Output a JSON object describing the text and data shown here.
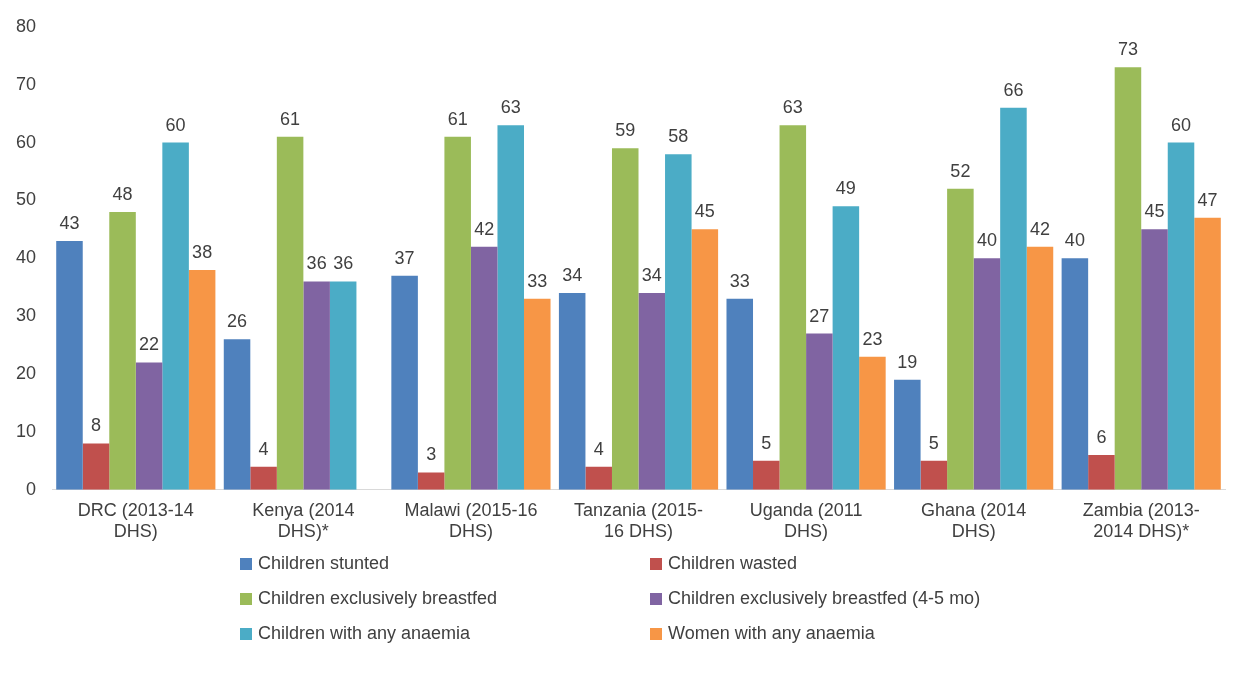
{
  "chart_data": {
    "type": "bar",
    "categories": [
      "DRC (2013-14 DHS)",
      "Kenya (2014 DHS)*",
      "Malawi (2015-16 DHS)",
      "Tanzania (2015-16 DHS)",
      "Uganda (2011 DHS)",
      "Ghana (2014 DHS)",
      "Zambia (2013-2014 DHS)*"
    ],
    "series": [
      {
        "name": "Children stunted",
        "color": "#4f81bd",
        "values": [
          43,
          26,
          37,
          34,
          33,
          19,
          40
        ]
      },
      {
        "name": "Children wasted",
        "color": "#c0504d",
        "values": [
          8,
          4,
          3,
          4,
          5,
          5,
          6
        ]
      },
      {
        "name": "Children exclusively breastfed",
        "color": "#9bbb59",
        "values": [
          48,
          61,
          61,
          59,
          63,
          52,
          73
        ]
      },
      {
        "name": "Children exclusively breastfed (4-5 mo)",
        "color": "#8064a2",
        "values": [
          22,
          36,
          42,
          34,
          27,
          40,
          45
        ]
      },
      {
        "name": "Children with any anaemia",
        "color": "#4bacc6",
        "values": [
          60,
          36,
          63,
          58,
          49,
          66,
          60
        ]
      },
      {
        "name": "Women with any anaemia",
        "color": "#f79646",
        "values": [
          38,
          null,
          33,
          45,
          23,
          42,
          47
        ]
      }
    ],
    "ylim": [
      0,
      80
    ],
    "yticks": [
      0,
      10,
      20,
      30,
      40,
      50,
      60,
      70,
      80
    ],
    "data_labels": true,
    "legend": "bottom"
  }
}
